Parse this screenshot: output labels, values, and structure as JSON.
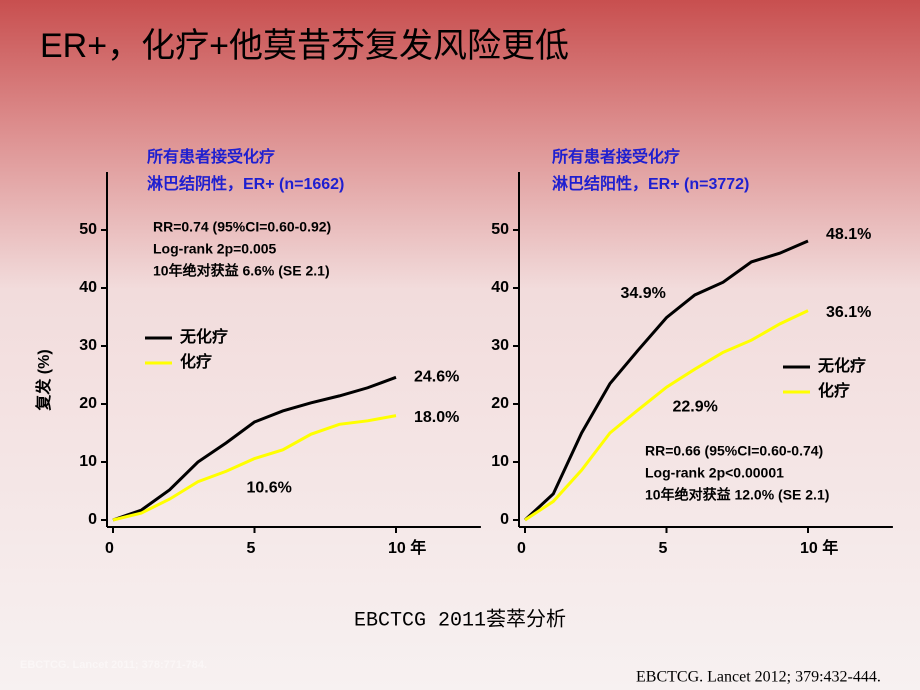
{
  "title": "ER+，化疗+他莫昔芬复发风险更低",
  "caption": "EBCTCG 2011荟萃分析",
  "citation_faint": "EBCTCG. Lancet 2011; 378:771-784.",
  "citation": "EBCTCG. Lancet 2012; 379:432-444.",
  "chart_data": [
    {
      "type": "line",
      "subtitle": [
        "所有患者接受化疗",
        "淋巴结阴性，ER+ (n=1662)"
      ],
      "ylabel": "复发 (%)",
      "annotations": [
        "RR=0.74 (95%CI=0.60-0.92)",
        "Log-rank 2p=0.005",
        "10年绝对获益 6.6% (SE 2.1)"
      ],
      "x": [
        0,
        1,
        2,
        3,
        4,
        5,
        6,
        7,
        8,
        9,
        10
      ],
      "series": [
        {
          "name": "无化疗",
          "color": "#000000",
          "values": [
            0,
            1.7,
            5.2,
            10,
            13.3,
            16.9,
            18.8,
            20.2,
            21.4,
            22.8,
            24.6
          ],
          "value_labels": [
            null,
            null,
            null,
            null,
            null,
            null,
            null,
            null,
            null,
            null,
            "24.6%"
          ]
        },
        {
          "name": "化疗",
          "color": "#ffff00",
          "values": [
            0,
            1.2,
            3.6,
            6.6,
            8.4,
            10.6,
            12.1,
            14.8,
            16.5,
            17.1,
            18.0
          ],
          "value_labels": [
            null,
            null,
            null,
            null,
            null,
            "10.6%",
            null,
            null,
            null,
            null,
            "18.0%"
          ]
        }
      ],
      "xlim": [
        0,
        13
      ],
      "ylim": [
        0,
        60
      ],
      "xticks": [
        0,
        5,
        {
          "value": 10,
          "label": "10 年"
        }
      ],
      "yticks": [
        0,
        10,
        20,
        30,
        40,
        50
      ],
      "legend": "center left"
    },
    {
      "type": "line",
      "subtitle": [
        "所有患者接受化疗",
        "淋巴结阳性，ER+ (n=3772)"
      ],
      "annotations": [
        "RR=0.66 (95%CI=0.60-0.74)",
        "Log-rank 2p<0.00001",
        "10年绝对获益 12.0% (SE 2.1)"
      ],
      "x": [
        0,
        1,
        2,
        3,
        4,
        5,
        6,
        7,
        8,
        9,
        10
      ],
      "series": [
        {
          "name": "无化疗",
          "color": "#000000",
          "values": [
            0,
            4.5,
            15,
            23.5,
            29.3,
            34.9,
            38.8,
            41,
            44.5,
            46,
            48.1
          ],
          "value_labels": [
            null,
            null,
            null,
            null,
            null,
            "34.9%",
            null,
            null,
            null,
            null,
            "48.1%"
          ]
        },
        {
          "name": "化疗",
          "color": "#ffff00",
          "values": [
            0,
            3.2,
            8.6,
            15,
            19,
            22.9,
            26,
            28.9,
            31,
            33.8,
            36.1
          ],
          "value_labels": [
            null,
            null,
            null,
            null,
            null,
            "22.9%",
            null,
            null,
            null,
            null,
            "36.1%"
          ]
        }
      ],
      "xlim": [
        0,
        13
      ],
      "ylim": [
        0,
        60
      ],
      "xticks": [
        0,
        5,
        {
          "value": 10,
          "label": "10 年"
        }
      ],
      "yticks": [
        0,
        10,
        20,
        30,
        40,
        50
      ],
      "legend": "center right"
    }
  ]
}
